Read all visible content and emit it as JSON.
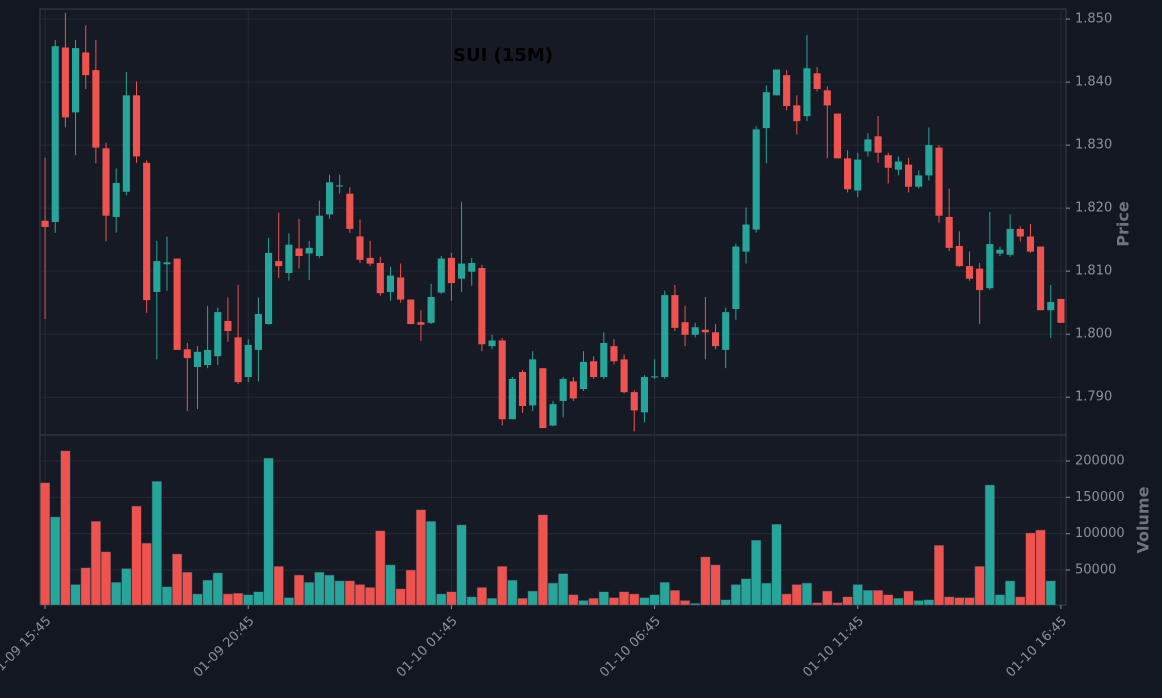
{
  "chart_data": {
    "type": "candlestick",
    "title": "SUI (15M)",
    "ylabel": "Price",
    "volume_label": "Volume",
    "up_color": "#26a69a",
    "down_color": "#ef5350",
    "grid": true,
    "xlim": [
      -0.5,
      100.5
    ],
    "xticks": [
      {
        "value": 0,
        "label": "01-09 15:45"
      },
      {
        "value": 20,
        "label": "01-09 20:45"
      },
      {
        "value": 40,
        "label": "01-10 01:45"
      },
      {
        "value": 60,
        "label": "01-10 06:45"
      },
      {
        "value": 80,
        "label": "01-10 11:45"
      },
      {
        "value": 100,
        "label": "01-10 16:45"
      }
    ],
    "ylim": [
      1.784,
      1.8516
    ],
    "yticks": [
      {
        "value": 1.79,
        "label": "1.790"
      },
      {
        "value": 1.8,
        "label": "1.800"
      },
      {
        "value": 1.81,
        "label": "1.810"
      },
      {
        "value": 1.82,
        "label": "1.820"
      },
      {
        "value": 1.83,
        "label": "1.830"
      },
      {
        "value": 1.84,
        "label": "1.840"
      },
      {
        "value": 1.85,
        "label": "1.850"
      }
    ],
    "volume_ylim": [
      1800,
      235800
    ],
    "volume_yticks": [
      50000,
      100000,
      150000,
      200000
    ],
    "open": [
      1.818,
      1.8178,
      1.8455,
      1.8352,
      1.8447,
      1.8419,
      1.8295,
      1.8186,
      1.8226,
      1.8379,
      1.8272,
      1.8067,
      1.8111,
      1.812,
      1.7976,
      1.7948,
      1.7951,
      1.7965,
      1.8021,
      1.7995,
      1.7932,
      1.7975,
      1.8016,
      1.8116,
      1.8097,
      1.8136,
      1.8128,
      1.8124,
      1.819,
      1.8235,
      1.8223,
      1.8155,
      1.8121,
      1.8113,
      1.8067,
      1.809,
      1.8055,
      1.8019,
      1.8018,
      1.8066,
      1.8121,
      1.8088,
      1.8099,
      1.8105,
      1.7981,
      1.799,
      1.7865,
      1.794,
      1.7887,
      1.7946,
      1.7855,
      1.7894,
      1.7925,
      1.7913,
      1.7957,
      1.7932,
      1.7981,
      1.796,
      1.7908,
      1.7876,
      1.7932,
      1.7932,
      1.8062,
      1.8019,
      1.7999,
      1.8007,
      1.8003,
      1.7975,
      1.804,
      1.8131,
      1.8166,
      1.8327,
      1.8379,
      1.8411,
      1.8363,
      1.8346,
      1.8414,
      1.8387,
      1.835,
      1.8279,
      1.8228,
      1.829,
      1.8314,
      1.8284,
      1.8261,
      1.8269,
      1.8234,
      1.8252,
      1.8296,
      1.8186,
      1.814,
      1.8108,
      1.8104,
      1.8073,
      1.8128,
      1.8126,
      1.8167,
      1.8155,
      1.8139,
      1.8038,
      1.8056
    ],
    "high": [
      1.828,
      1.8467,
      1.851,
      1.8467,
      1.849,
      1.8467,
      1.8304,
      1.8263,
      1.8416,
      1.8401,
      1.8276,
      1.8148,
      1.8155,
      1.812,
      1.7986,
      1.7981,
      1.8045,
      1.8042,
      1.8058,
      1.8078,
      1.7992,
      1.8058,
      1.8153,
      1.8193,
      1.816,
      1.8183,
      1.8148,
      1.8212,
      1.8253,
      1.8253,
      1.8233,
      1.8182,
      1.8148,
      1.8123,
      1.8107,
      1.8112,
      1.8055,
      1.8038,
      1.808,
      1.8124,
      1.8129,
      1.821,
      1.8121,
      1.811,
      1.7999,
      1.7994,
      1.7932,
      1.7943,
      1.7973,
      1.7946,
      1.7894,
      1.7932,
      1.7932,
      1.7973,
      1.7965,
      1.8003,
      1.7992,
      1.7968,
      1.7911,
      1.7935,
      1.796,
      1.8069,
      1.8078,
      1.8045,
      1.8018,
      1.8059,
      1.8016,
      1.8042,
      1.8144,
      1.8201,
      1.833,
      1.8395,
      1.842,
      1.8419,
      1.8379,
      1.8475,
      1.8424,
      1.8393,
      1.835,
      1.8292,
      1.8288,
      1.8319,
      1.8346,
      1.8288,
      1.8282,
      1.828,
      1.826,
      1.8328,
      1.83,
      1.8231,
      1.8163,
      1.8131,
      1.8113,
      1.8194,
      1.8139,
      1.819,
      1.8171,
      1.8175,
      1.8139,
      1.8078,
      1.8056
    ],
    "low": [
      1.8024,
      1.8161,
      1.8328,
      1.8284,
      1.8389,
      1.8271,
      1.8147,
      1.8161,
      1.822,
      1.8272,
      1.8034,
      1.796,
      1.8069,
      1.7975,
      1.7878,
      1.7881,
      1.7946,
      1.7951,
      1.7988,
      1.7921,
      1.7924,
      1.7925,
      1.8015,
      1.8089,
      1.8085,
      1.8104,
      1.8086,
      1.8121,
      1.8183,
      1.8223,
      1.8161,
      1.8113,
      1.8108,
      1.8061,
      1.8053,
      1.805,
      1.8016,
      1.7989,
      1.8016,
      1.8064,
      1.8053,
      1.8067,
      1.8077,
      1.7973,
      1.7976,
      1.7855,
      1.7865,
      1.7875,
      1.7878,
      1.7851,
      1.7854,
      1.7868,
      1.7894,
      1.791,
      1.7929,
      1.7929,
      1.7952,
      1.7906,
      1.7846,
      1.786,
      1.7929,
      1.7929,
      1.8005,
      1.7981,
      1.7995,
      1.796,
      1.7976,
      1.7946,
      1.8023,
      1.8112,
      1.8161,
      1.8271,
      1.8379,
      1.8355,
      1.8317,
      1.8338,
      1.8385,
      1.8279,
      1.8279,
      1.8225,
      1.8217,
      1.8282,
      1.8272,
      1.8239,
      1.8252,
      1.8225,
      1.8231,
      1.8244,
      1.8177,
      1.8132,
      1.8107,
      1.8085,
      1.8016,
      1.807,
      1.8124,
      1.8123,
      1.8147,
      1.8129,
      1.8038,
      1.7994,
      1.8018
    ],
    "close": [
      1.817,
      1.8457,
      1.8344,
      1.8454,
      1.8411,
      1.8296,
      1.8188,
      1.824,
      1.8379,
      1.8282,
      1.8054,
      1.8116,
      1.8114,
      1.7975,
      1.7962,
      1.7972,
      1.7975,
      1.8035,
      1.8005,
      1.7924,
      1.7983,
      1.8032,
      1.8129,
      1.8108,
      1.8142,
      1.8124,
      1.8137,
      1.8188,
      1.8241,
      1.8236,
      1.8167,
      1.8118,
      1.8112,
      1.8065,
      1.8093,
      1.8055,
      1.8016,
      1.8015,
      1.8059,
      1.812,
      1.8081,
      1.8112,
      1.8113,
      1.7984,
      1.799,
      1.7865,
      1.7929,
      1.7886,
      1.796,
      1.7851,
      1.7889,
      1.7929,
      1.7898,
      1.7956,
      1.7932,
      1.7986,
      1.7957,
      1.7908,
      1.7879,
      1.7932,
      1.7933,
      1.8062,
      1.801,
      1.7999,
      1.8011,
      1.8003,
      1.7981,
      1.8035,
      1.8139,
      1.8174,
      1.8325,
      1.8384,
      1.842,
      1.8362,
      1.8338,
      1.8422,
      1.8389,
      1.8363,
      1.8279,
      1.823,
      1.8277,
      1.8309,
      1.8288,
      1.8264,
      1.8274,
      1.8234,
      1.8252,
      1.83,
      1.8188,
      1.8137,
      1.8108,
      1.8088,
      1.807,
      1.8143,
      1.8134,
      1.8167,
      1.8155,
      1.8131,
      1.8038,
      1.8051,
      1.8018
    ],
    "volume": [
      170000,
      123000,
      214000,
      30000,
      53000,
      117000,
      75000,
      33000,
      52000,
      138000,
      87000,
      172000,
      27000,
      72000,
      47000,
      17000,
      36000,
      46000,
      17000,
      18000,
      16000,
      20000,
      204000,
      55000,
      12000,
      43000,
      33000,
      47000,
      43000,
      35000,
      35000,
      30000,
      26000,
      104000,
      57000,
      24000,
      50000,
      133000,
      117000,
      17000,
      20000,
      112000,
      13000,
      26000,
      11000,
      55000,
      36000,
      11000,
      21000,
      126000,
      32000,
      45000,
      16000,
      8000,
      11000,
      20000,
      12000,
      20000,
      17000,
      12000,
      16000,
      33000,
      22000,
      8000,
      4000,
      68000,
      57000,
      9000,
      30000,
      38000,
      91000,
      32000,
      113000,
      17000,
      30000,
      32000,
      5000,
      21000,
      5000,
      13000,
      30000,
      22000,
      22000,
      16000,
      11000,
      21000,
      8000,
      9000,
      84000,
      13000,
      12000,
      12000,
      55000,
      167000,
      16000,
      35000,
      13000,
      101000,
      105000,
      35000,
      null
    ]
  }
}
